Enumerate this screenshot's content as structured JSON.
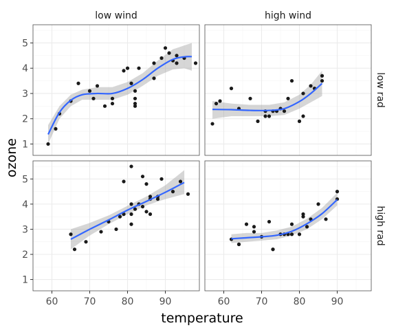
{
  "chart_data": {
    "type": "scatter",
    "xlabel": "temperature",
    "ylabel": "ozone",
    "xlim": [
      55,
      99
    ],
    "ylim": [
      0.55,
      5.72
    ],
    "x_ticks": [
      60,
      70,
      80,
      90
    ],
    "y_ticks": [
      1,
      2,
      3,
      4,
      5
    ],
    "col_facets": [
      "low wind",
      "high wind"
    ],
    "row_facets": [
      "low rad",
      "high rad"
    ],
    "grid": true,
    "smooth": "loess with confidence band",
    "colors": {
      "points": "#1a1a1a",
      "smooth_line": "#3366ff",
      "band": "#999999",
      "grid": "#ebebeb",
      "panel_border": "#4d4d4d"
    },
    "panels": [
      {
        "row": "low rad",
        "col": "low wind",
        "points": [
          [
            59,
            1.0
          ],
          [
            61,
            1.6
          ],
          [
            62,
            2.2
          ],
          [
            65,
            2.7
          ],
          [
            67,
            3.4
          ],
          [
            70,
            3.1
          ],
          [
            71,
            2.8
          ],
          [
            72,
            3.3
          ],
          [
            74,
            2.5
          ],
          [
            76,
            2.6
          ],
          [
            76,
            2.8
          ],
          [
            79,
            3.9
          ],
          [
            80,
            4.0
          ],
          [
            81,
            3.4
          ],
          [
            82,
            3.1
          ],
          [
            82,
            2.8
          ],
          [
            82,
            2.6
          ],
          [
            82,
            2.5
          ],
          [
            83,
            4.0
          ],
          [
            87,
            3.6
          ],
          [
            87,
            4.2
          ],
          [
            89,
            4.4
          ],
          [
            90,
            4.8
          ],
          [
            91,
            4.6
          ],
          [
            92,
            4.3
          ],
          [
            93,
            4.5
          ],
          [
            93,
            4.2
          ],
          [
            95,
            4.4
          ],
          [
            98,
            4.2
          ]
        ],
        "smooth": [
          [
            59,
            1.38
          ],
          [
            62,
            2.25
          ],
          [
            65,
            2.73
          ],
          [
            68,
            2.95
          ],
          [
            72,
            3.0
          ],
          [
            76,
            3.0
          ],
          [
            80,
            3.2
          ],
          [
            84,
            3.55
          ],
          [
            88,
            4.0
          ],
          [
            92,
            4.35
          ],
          [
            95,
            4.45
          ],
          [
            97,
            4.46
          ]
        ],
        "band_upper": [
          [
            59,
            1.75
          ],
          [
            62,
            2.5
          ],
          [
            65,
            2.95
          ],
          [
            68,
            3.15
          ],
          [
            72,
            3.25
          ],
          [
            76,
            3.25
          ],
          [
            80,
            3.45
          ],
          [
            84,
            3.8
          ],
          [
            88,
            4.3
          ],
          [
            92,
            4.75
          ],
          [
            95,
            4.9
          ],
          [
            97,
            5.0
          ]
        ],
        "band_lower": [
          [
            59,
            1.0
          ],
          [
            62,
            2.0
          ],
          [
            65,
            2.5
          ],
          [
            68,
            2.75
          ],
          [
            72,
            2.75
          ],
          [
            76,
            2.75
          ],
          [
            80,
            2.95
          ],
          [
            84,
            3.3
          ],
          [
            88,
            3.7
          ],
          [
            92,
            3.95
          ],
          [
            95,
            4.0
          ],
          [
            97,
            3.9
          ]
        ]
      },
      {
        "row": "low rad",
        "col": "high wind",
        "points": [
          [
            57,
            1.8
          ],
          [
            58,
            2.6
          ],
          [
            59,
            2.7
          ],
          [
            62,
            3.2
          ],
          [
            64,
            2.4
          ],
          [
            67,
            2.8
          ],
          [
            69,
            1.9
          ],
          [
            71,
            2.1
          ],
          [
            71,
            2.3
          ],
          [
            72,
            2.1
          ],
          [
            73,
            2.3
          ],
          [
            74,
            2.3
          ],
          [
            75,
            2.4
          ],
          [
            76,
            2.3
          ],
          [
            77,
            2.8
          ],
          [
            78,
            3.5
          ],
          [
            80,
            1.9
          ],
          [
            81,
            2.1
          ],
          [
            81,
            3.0
          ],
          [
            83,
            3.3
          ],
          [
            84,
            3.2
          ],
          [
            86,
            3.5
          ],
          [
            86,
            3.7
          ]
        ],
        "smooth": [
          [
            57,
            2.37
          ],
          [
            62,
            2.36
          ],
          [
            67,
            2.33
          ],
          [
            72,
            2.33
          ],
          [
            76,
            2.4
          ],
          [
            80,
            2.68
          ],
          [
            83,
            3.0
          ],
          [
            86,
            3.4
          ]
        ],
        "band_upper": [
          [
            57,
            2.7
          ],
          [
            62,
            2.6
          ],
          [
            67,
            2.55
          ],
          [
            72,
            2.55
          ],
          [
            76,
            2.65
          ],
          [
            80,
            2.95
          ],
          [
            83,
            3.35
          ],
          [
            86,
            3.9
          ]
        ],
        "band_lower": [
          [
            57,
            2.0
          ],
          [
            62,
            2.1
          ],
          [
            67,
            2.1
          ],
          [
            72,
            2.1
          ],
          [
            76,
            2.15
          ],
          [
            80,
            2.4
          ],
          [
            83,
            2.65
          ],
          [
            86,
            2.9
          ]
        ]
      },
      {
        "row": "high rad",
        "col": "low wind",
        "points": [
          [
            65,
            2.8
          ],
          [
            66,
            2.2
          ],
          [
            69,
            2.5
          ],
          [
            73,
            2.9
          ],
          [
            75,
            3.3
          ],
          [
            77,
            3.0
          ],
          [
            78,
            3.5
          ],
          [
            79,
            3.6
          ],
          [
            79,
            4.9
          ],
          [
            81,
            3.2
          ],
          [
            81,
            3.6
          ],
          [
            81,
            4.0
          ],
          [
            81,
            5.5
          ],
          [
            82,
            3.8
          ],
          [
            83,
            4.0
          ],
          [
            84,
            3.9
          ],
          [
            84,
            5.1
          ],
          [
            85,
            3.7
          ],
          [
            85,
            4.8
          ],
          [
            86,
            3.6
          ],
          [
            86,
            4.2
          ],
          [
            86,
            4.3
          ],
          [
            88,
            4.2
          ],
          [
            88,
            4.3
          ],
          [
            89,
            5.0
          ],
          [
            92,
            4.5
          ],
          [
            94,
            4.9
          ],
          [
            96,
            4.4
          ]
        ],
        "smooth": [
          [
            65,
            2.6
          ],
          [
            70,
            3.0
          ],
          [
            75,
            3.37
          ],
          [
            80,
            3.76
          ],
          [
            85,
            4.11
          ],
          [
            90,
            4.47
          ],
          [
            95,
            4.86
          ]
        ],
        "band_upper": [
          [
            65,
            3.0
          ],
          [
            70,
            3.25
          ],
          [
            75,
            3.55
          ],
          [
            80,
            3.93
          ],
          [
            85,
            4.3
          ],
          [
            90,
            4.75
          ],
          [
            95,
            5.35
          ]
        ],
        "band_lower": [
          [
            65,
            2.2
          ],
          [
            70,
            2.75
          ],
          [
            75,
            3.2
          ],
          [
            80,
            3.6
          ],
          [
            85,
            3.95
          ],
          [
            90,
            4.2
          ],
          [
            95,
            4.4
          ]
        ]
      },
      {
        "row": "high rad",
        "col": "high wind",
        "points": [
          [
            62,
            2.6
          ],
          [
            64,
            2.4
          ],
          [
            64,
            2.4
          ],
          [
            66,
            3.2
          ],
          [
            68,
            2.9
          ],
          [
            68,
            3.1
          ],
          [
            70,
            2.7
          ],
          [
            72,
            3.3
          ],
          [
            73,
            2.2
          ],
          [
            73,
            2.2
          ],
          [
            75,
            2.8
          ],
          [
            76,
            2.8
          ],
          [
            77,
            2.8
          ],
          [
            78,
            2.8
          ],
          [
            78,
            3.2
          ],
          [
            80,
            2.8
          ],
          [
            81,
            3.5
          ],
          [
            81,
            3.6
          ],
          [
            82,
            3.1
          ],
          [
            83,
            3.4
          ],
          [
            85,
            4.0
          ],
          [
            87,
            3.4
          ],
          [
            90,
            4.2
          ],
          [
            90,
            4.5
          ]
        ],
        "smooth": [
          [
            62,
            2.62
          ],
          [
            66,
            2.66
          ],
          [
            70,
            2.7
          ],
          [
            74,
            2.76
          ],
          [
            78,
            2.92
          ],
          [
            82,
            3.22
          ],
          [
            86,
            3.62
          ],
          [
            90,
            4.18
          ]
        ],
        "band_upper": [
          [
            62,
            2.8
          ],
          [
            66,
            2.85
          ],
          [
            70,
            2.85
          ],
          [
            74,
            2.95
          ],
          [
            78,
            3.1
          ],
          [
            82,
            3.42
          ],
          [
            86,
            3.85
          ],
          [
            90,
            4.45
          ]
        ],
        "band_lower": [
          [
            62,
            2.45
          ],
          [
            66,
            2.5
          ],
          [
            70,
            2.55
          ],
          [
            74,
            2.6
          ],
          [
            78,
            2.75
          ],
          [
            82,
            3.0
          ],
          [
            86,
            3.4
          ],
          [
            90,
            3.95
          ]
        ]
      }
    ]
  }
}
